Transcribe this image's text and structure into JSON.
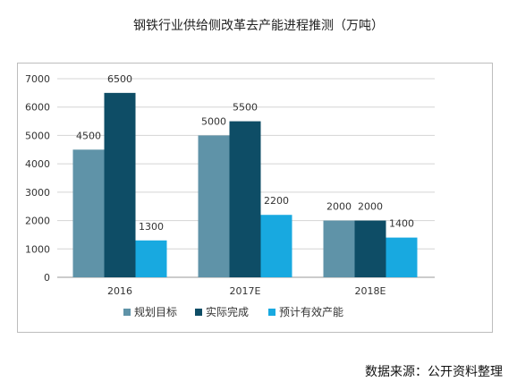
{
  "title": "钢铁行业供给侧改革去产能进程推测（万吨）",
  "source": "数据来源：公开资料整理",
  "chart_data": {
    "type": "bar",
    "categories": [
      "2016",
      "2017E",
      "2018E"
    ],
    "series": [
      {
        "name": "规划目标",
        "values": [
          4500,
          5000,
          2000
        ],
        "color": "#5f93a8"
      },
      {
        "name": "实际完成",
        "values": [
          6500,
          5500,
          2000
        ],
        "color": "#0e4d66"
      },
      {
        "name": "预计有效产能",
        "values": [
          1300,
          2200,
          1400
        ],
        "color": "#18a9e0"
      }
    ],
    "ylim": [
      0,
      7000
    ],
    "yticks": [
      0,
      1000,
      2000,
      3000,
      4000,
      5000,
      6000,
      7000
    ],
    "grid": true,
    "legend_position": "bottom"
  }
}
